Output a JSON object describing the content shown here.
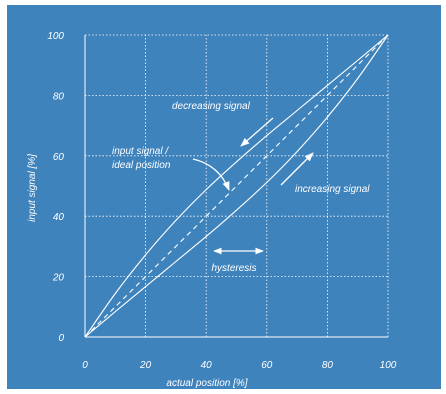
{
  "colors": {
    "background": "#3f83bd",
    "foreground": "#ffffff"
  },
  "chart_data": {
    "type": "line",
    "xlabel": "actual position [%]",
    "ylabel": "input signal [%]",
    "xlim": [
      0,
      100
    ],
    "ylim": [
      0,
      100
    ],
    "x_ticks": [
      "0",
      "20",
      "40",
      "60",
      "80",
      "100"
    ],
    "y_ticks": [
      "0",
      "20",
      "40",
      "60",
      "80",
      "100"
    ],
    "grid": "dotted",
    "series": [
      {
        "name": "decreasing signal",
        "style": "solid",
        "x": [
          0,
          10,
          20,
          30,
          40,
          50,
          60,
          70,
          80,
          90,
          100
        ],
        "y": [
          0,
          14.4,
          27.2,
          38.6,
          48.8,
          58.0,
          66.7,
          75.0,
          83.3,
          91.6,
          100
        ]
      },
      {
        "name": "increasing signal",
        "style": "solid",
        "x": [
          0,
          10,
          20,
          30,
          40,
          50,
          60,
          70,
          80,
          90,
          100
        ],
        "y": [
          0,
          8.4,
          16.7,
          25.0,
          33.3,
          42.0,
          51.2,
          61.4,
          72.8,
          85.6,
          100
        ]
      },
      {
        "name": "input signal / ideal position",
        "style": "dashed",
        "x": [
          0,
          100
        ],
        "y": [
          0,
          100
        ]
      }
    ],
    "annotations": {
      "decreasing": "decreasing signal",
      "increasing": "increasing signal",
      "ideal_line1": "input signal /",
      "ideal_line2": "ideal position",
      "hysteresis": "hysteresis"
    }
  }
}
